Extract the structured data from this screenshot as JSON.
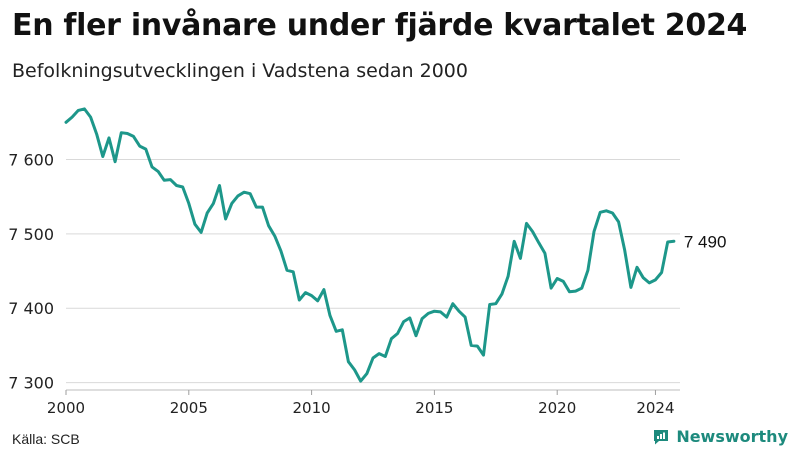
{
  "header": {
    "title": "En fler invånare under fjärde kvartalet 2024",
    "subtitle": "Befolkningsutvecklingen i Vadstena sedan 2000"
  },
  "footer": {
    "source": "Källa: SCB",
    "brand": "Newsworthy"
  },
  "colors": {
    "line": "#1d978a",
    "grid": "#d9d9d9",
    "brand": "#1d8a7d"
  },
  "chart_data": {
    "type": "line",
    "title": "En fler invånare under fjärde kvartalet 2024",
    "subtitle": "Befolkningsutvecklingen i Vadstena sedan 2000",
    "xlabel": "",
    "ylabel": "",
    "x_ticks": [
      "2000",
      "2005",
      "2010",
      "2015",
      "2020",
      "2024"
    ],
    "y_ticks": [
      "7 300",
      "7 400",
      "7 500",
      "7 600"
    ],
    "xlim": [
      2000.0,
      2025.0
    ],
    "ylim": [
      7290,
      7680
    ],
    "grid": "horizontal",
    "end_label": "7 490",
    "series": [
      {
        "x": [
          2000.0,
          2000.25,
          2000.5,
          2000.75,
          2001.0,
          2001.25,
          2001.5,
          2001.75,
          2002.0,
          2002.25,
          2002.5,
          2002.75,
          2003.0,
          2003.25,
          2003.5,
          2003.75,
          2004.0,
          2004.25,
          2004.5,
          2004.75,
          2005.0,
          2005.25,
          2005.5,
          2005.75,
          2006.0,
          2006.25,
          2006.5,
          2006.75,
          2007.0,
          2007.25,
          2007.5,
          2007.75,
          2008.0,
          2008.25,
          2008.5,
          2008.75,
          2009.0,
          2009.25,
          2009.5,
          2009.75,
          2010.0,
          2010.25,
          2010.5,
          2010.75,
          2011.0,
          2011.25,
          2011.5,
          2011.75,
          2012.0,
          2012.25,
          2012.5,
          2012.75,
          2013.0,
          2013.25,
          2013.5,
          2013.75,
          2014.0,
          2014.25,
          2014.5,
          2014.75,
          2015.0,
          2015.25,
          2015.5,
          2015.75,
          2016.0,
          2016.25,
          2016.5,
          2016.75,
          2017.0,
          2017.25,
          2017.5,
          2017.75,
          2018.0,
          2018.25,
          2018.5,
          2018.75,
          2019.0,
          2019.25,
          2019.5,
          2019.75,
          2020.0,
          2020.25,
          2020.5,
          2020.75,
          2021.0,
          2021.25,
          2021.5,
          2021.75,
          2022.0,
          2022.25,
          2022.5,
          2022.75,
          2023.0,
          2023.25,
          2023.5,
          2023.75,
          2024.0,
          2024.25,
          2024.5,
          2024.75
        ],
        "values": [
          7650,
          7657,
          7666,
          7668,
          7657,
          7634,
          7604,
          7629,
          7597,
          7636,
          7635,
          7631,
          7618,
          7614,
          7590,
          7584,
          7572,
          7573,
          7565,
          7563,
          7541,
          7513,
          7502,
          7528,
          7541,
          7565,
          7520,
          7541,
          7551,
          7556,
          7554,
          7536,
          7536,
          7511,
          7497,
          7477,
          7451,
          7449,
          7411,
          7421,
          7417,
          7410,
          7425,
          7390,
          7369,
          7371,
          7328,
          7317,
          7302,
          7312,
          7333,
          7339,
          7335,
          7359,
          7366,
          7382,
          7387,
          7363,
          7386,
          7393,
          7396,
          7395,
          7388,
          7406,
          7396,
          7388,
          7350,
          7349,
          7337,
          7405,
          7406,
          7419,
          7443,
          7490,
          7467,
          7514,
          7503,
          7488,
          7474,
          7427,
          7440,
          7436,
          7422,
          7423,
          7427,
          7451,
          7503,
          7529,
          7531,
          7528,
          7516,
          7478,
          7428,
          7455,
          7441,
          7434,
          7438,
          7448,
          7489,
          7490
        ]
      }
    ]
  }
}
